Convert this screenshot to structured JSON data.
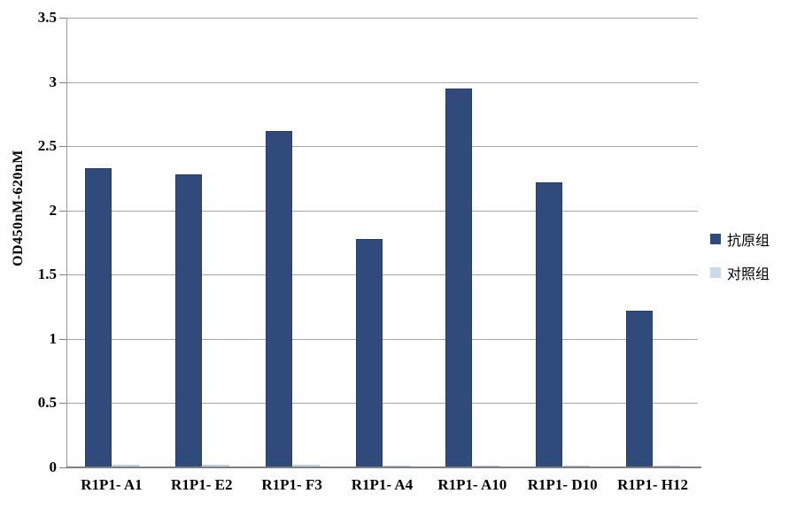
{
  "chart_data": {
    "type": "bar",
    "title": "",
    "xlabel": "",
    "ylabel": "OD450nM-620nM",
    "categories": [
      "R1P1- A1",
      "R1P1- E2",
      "R1P1- F3",
      "R1P1- A4",
      "R1P1- A10",
      "R1P1- D10",
      "R1P1- H12"
    ],
    "series": [
      {
        "name": "抗原组",
        "key": "antigen-group",
        "color": "#314A7C",
        "values": [
          2.33,
          2.28,
          2.62,
          1.78,
          2.95,
          2.22,
          1.22
        ]
      },
      {
        "name": "对照组",
        "key": "control-group",
        "color": "#CBD7EA",
        "values": [
          0.02,
          0.02,
          0.02,
          0.01,
          0.01,
          0.01,
          0.01
        ]
      }
    ],
    "ylim": [
      0,
      3.5
    ],
    "ytick_step": 0.5,
    "ytick_labels": [
      "0",
      "0.5",
      "1",
      "1.5",
      "2",
      "2.5",
      "3",
      "3.5"
    ],
    "grid": "horizontal",
    "legend_position": "right",
    "colors": {
      "gridline": "#A6A6A6",
      "axis_line": "#7F7F7F",
      "y_axis_line": "#999999",
      "text": "#000000",
      "background": "#FFFFFF"
    }
  }
}
